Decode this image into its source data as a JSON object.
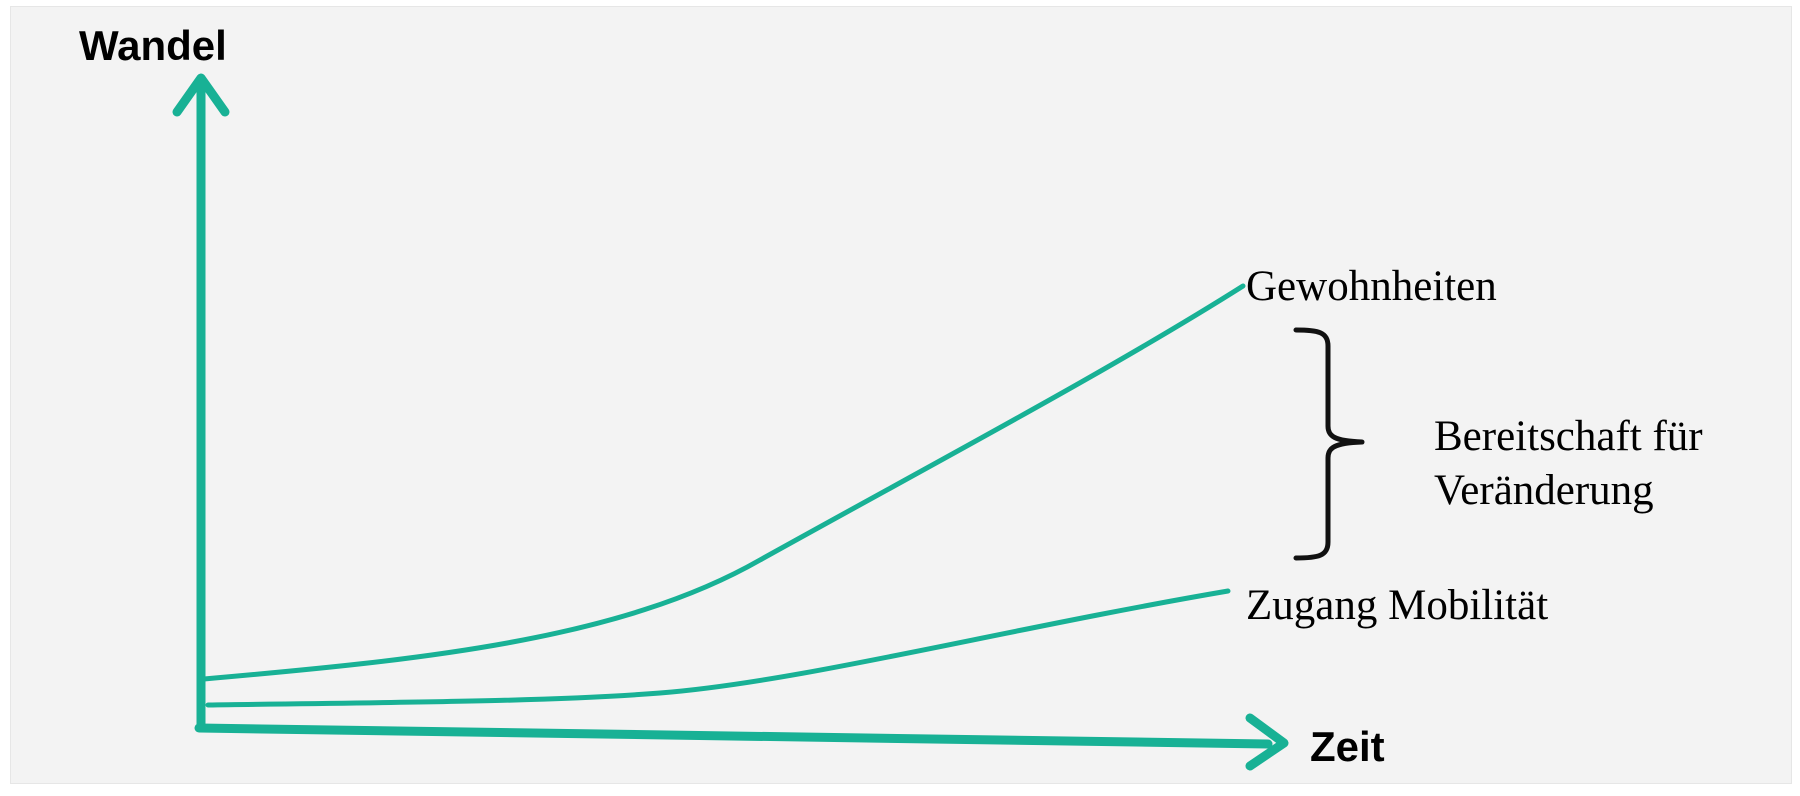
{
  "diagram": {
    "y_axis_label": "Wandel",
    "x_axis_label": "Zeit",
    "curves": {
      "upper": "Gewohnheiten",
      "lower": "Zugang Mobilität"
    },
    "brace_label": {
      "line1": "Bereitschaft für",
      "line2": "Veränderung"
    },
    "colors": {
      "axis": "#18b195",
      "curve": "#18b195",
      "brace": "#111111",
      "background": "#f3f3f3"
    }
  }
}
